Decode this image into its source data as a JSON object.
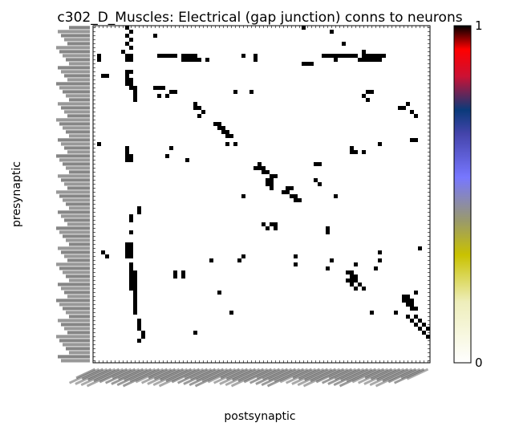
{
  "chart_data": {
    "type": "heatmap",
    "title": "c302_D_Muscles: Electrical (gap junction) conns to neurons",
    "xlabel": "postsynaptic",
    "ylabel": "presynaptic",
    "grid": false,
    "value_range": [
      0,
      1
    ],
    "colorbar": {
      "ticks": [
        0,
        1
      ],
      "tick_labels": [
        "0",
        "1"
      ],
      "stops": [
        {
          "value": 0.0,
          "color": "#ffffff"
        },
        {
          "value": 0.18,
          "color": "#eeeebb"
        },
        {
          "value": 0.32,
          "color": "#c9c200"
        },
        {
          "value": 0.42,
          "color": "#9a9a6a"
        },
        {
          "value": 0.55,
          "color": "#7777ff"
        },
        {
          "value": 0.68,
          "color": "#4444aa"
        },
        {
          "value": 0.75,
          "color": "#0a3a7a"
        },
        {
          "value": 0.85,
          "color": "#cc1133"
        },
        {
          "value": 0.93,
          "color": "#ff0000"
        },
        {
          "value": 1.0,
          "color": "#000000"
        }
      ]
    },
    "n_rows": 84,
    "n_cols": 84,
    "cell_value": 1,
    "cells": [
      [
        0,
        8
      ],
      [
        0,
        52
      ],
      [
        1,
        9
      ],
      [
        1,
        59
      ],
      [
        2,
        8
      ],
      [
        2,
        15
      ],
      [
        3,
        9
      ],
      [
        4,
        8
      ],
      [
        4,
        62
      ],
      [
        5,
        9
      ],
      [
        6,
        7
      ],
      [
        6,
        67
      ],
      [
        7,
        1
      ],
      [
        7,
        8
      ],
      [
        7,
        9
      ],
      [
        7,
        16
      ],
      [
        7,
        17
      ],
      [
        7,
        18
      ],
      [
        7,
        19
      ],
      [
        7,
        20
      ],
      [
        7,
        22
      ],
      [
        7,
        23
      ],
      [
        7,
        24
      ],
      [
        7,
        25
      ],
      [
        7,
        37
      ],
      [
        7,
        40
      ],
      [
        7,
        57
      ],
      [
        7,
        58
      ],
      [
        7,
        59
      ],
      [
        7,
        60
      ],
      [
        7,
        61
      ],
      [
        7,
        62
      ],
      [
        7,
        63
      ],
      [
        7,
        64
      ],
      [
        7,
        65
      ],
      [
        7,
        67
      ],
      [
        7,
        68
      ],
      [
        7,
        69
      ],
      [
        7,
        70
      ],
      [
        7,
        71
      ],
      [
        7,
        72
      ],
      [
        8,
        1
      ],
      [
        8,
        8
      ],
      [
        8,
        9
      ],
      [
        8,
        22
      ],
      [
        8,
        23
      ],
      [
        8,
        24
      ],
      [
        8,
        25
      ],
      [
        8,
        26
      ],
      [
        8,
        28
      ],
      [
        8,
        40
      ],
      [
        8,
        60
      ],
      [
        8,
        66
      ],
      [
        8,
        67
      ],
      [
        8,
        68
      ],
      [
        8,
        69
      ],
      [
        8,
        70
      ],
      [
        8,
        71
      ],
      [
        9,
        52
      ],
      [
        9,
        53
      ],
      [
        9,
        54
      ],
      [
        11,
        8
      ],
      [
        11,
        9
      ],
      [
        12,
        2
      ],
      [
        12,
        3
      ],
      [
        12,
        8
      ],
      [
        13,
        8
      ],
      [
        13,
        9
      ],
      [
        14,
        8
      ],
      [
        14,
        9
      ],
      [
        15,
        9
      ],
      [
        15,
        10
      ],
      [
        15,
        15
      ],
      [
        15,
        16
      ],
      [
        15,
        17
      ],
      [
        16,
        10
      ],
      [
        16,
        19
      ],
      [
        16,
        20
      ],
      [
        16,
        35
      ],
      [
        16,
        39
      ],
      [
        16,
        68
      ],
      [
        16,
        69
      ],
      [
        17,
        10
      ],
      [
        17,
        16
      ],
      [
        17,
        18
      ],
      [
        17,
        67
      ],
      [
        18,
        10
      ],
      [
        18,
        68
      ],
      [
        19,
        25
      ],
      [
        19,
        78
      ],
      [
        20,
        25
      ],
      [
        20,
        26
      ],
      [
        20,
        76
      ],
      [
        20,
        77
      ],
      [
        21,
        27
      ],
      [
        21,
        79
      ],
      [
        22,
        26
      ],
      [
        22,
        80
      ],
      [
        24,
        30
      ],
      [
        24,
        31
      ],
      [
        25,
        31
      ],
      [
        25,
        32
      ],
      [
        26,
        32
      ],
      [
        26,
        33
      ],
      [
        27,
        33
      ],
      [
        27,
        34
      ],
      [
        28,
        79
      ],
      [
        28,
        80
      ],
      [
        29,
        1
      ],
      [
        29,
        33
      ],
      [
        29,
        35
      ],
      [
        29,
        71
      ],
      [
        30,
        8
      ],
      [
        30,
        19
      ],
      [
        30,
        64
      ],
      [
        31,
        8
      ],
      [
        31,
        64
      ],
      [
        31,
        65
      ],
      [
        31,
        67
      ],
      [
        32,
        8
      ],
      [
        32,
        9
      ],
      [
        32,
        18
      ],
      [
        33,
        8
      ],
      [
        33,
        9
      ],
      [
        33,
        23
      ],
      [
        34,
        41
      ],
      [
        34,
        55
      ],
      [
        34,
        56
      ],
      [
        35,
        40
      ],
      [
        35,
        41
      ],
      [
        35,
        42
      ],
      [
        36,
        42
      ],
      [
        36,
        43
      ],
      [
        37,
        44
      ],
      [
        37,
        45
      ],
      [
        38,
        43
      ],
      [
        38,
        44
      ],
      [
        38,
        55
      ],
      [
        39,
        43
      ],
      [
        39,
        44
      ],
      [
        39,
        56
      ],
      [
        40,
        44
      ],
      [
        40,
        48
      ],
      [
        40,
        49
      ],
      [
        41,
        47
      ],
      [
        41,
        48
      ],
      [
        42,
        37
      ],
      [
        42,
        49
      ],
      [
        42,
        50
      ],
      [
        42,
        60
      ],
      [
        43,
        50
      ],
      [
        43,
        51
      ],
      [
        45,
        11
      ],
      [
        46,
        11
      ],
      [
        47,
        9
      ],
      [
        48,
        9
      ],
      [
        49,
        42
      ],
      [
        49,
        44
      ],
      [
        49,
        45
      ],
      [
        50,
        43
      ],
      [
        50,
        45
      ],
      [
        50,
        58
      ],
      [
        51,
        9
      ],
      [
        51,
        58
      ],
      [
        54,
        8
      ],
      [
        54,
        9
      ],
      [
        55,
        8
      ],
      [
        55,
        9
      ],
      [
        55,
        81
      ],
      [
        56,
        2
      ],
      [
        56,
        8
      ],
      [
        56,
        9
      ],
      [
        56,
        71
      ],
      [
        57,
        3
      ],
      [
        57,
        8
      ],
      [
        57,
        9
      ],
      [
        57,
        37
      ],
      [
        57,
        50
      ],
      [
        58,
        29
      ],
      [
        58,
        36
      ],
      [
        58,
        59
      ],
      [
        58,
        71
      ],
      [
        59,
        9
      ],
      [
        59,
        50
      ],
      [
        59,
        65
      ],
      [
        60,
        9
      ],
      [
        60,
        58
      ],
      [
        60,
        70
      ],
      [
        61,
        9
      ],
      [
        61,
        10
      ],
      [
        61,
        20
      ],
      [
        61,
        22
      ],
      [
        61,
        63
      ],
      [
        61,
        64
      ],
      [
        62,
        9
      ],
      [
        62,
        10
      ],
      [
        62,
        20
      ],
      [
        62,
        22
      ],
      [
        62,
        64
      ],
      [
        62,
        65
      ],
      [
        63,
        9
      ],
      [
        63,
        10
      ],
      [
        63,
        63
      ],
      [
        63,
        64
      ],
      [
        63,
        65
      ],
      [
        64,
        9
      ],
      [
        64,
        10
      ],
      [
        64,
        64
      ],
      [
        64,
        66
      ],
      [
        65,
        9
      ],
      [
        65,
        10
      ],
      [
        65,
        65
      ],
      [
        65,
        67
      ],
      [
        66,
        10
      ],
      [
        66,
        31
      ],
      [
        66,
        80
      ],
      [
        67,
        10
      ],
      [
        67,
        77
      ],
      [
        67,
        78
      ],
      [
        68,
        10
      ],
      [
        68,
        77
      ],
      [
        68,
        78
      ],
      [
        68,
        79
      ],
      [
        69,
        10
      ],
      [
        69,
        78
      ],
      [
        69,
        79
      ],
      [
        70,
        10
      ],
      [
        70,
        79
      ],
      [
        70,
        80
      ],
      [
        71,
        10
      ],
      [
        71,
        34
      ],
      [
        71,
        69
      ],
      [
        71,
        75
      ],
      [
        72,
        78
      ],
      [
        72,
        80
      ],
      [
        73,
        11
      ],
      [
        73,
        79
      ],
      [
        73,
        81
      ],
      [
        74,
        11
      ],
      [
        74,
        80
      ],
      [
        74,
        82
      ],
      [
        75,
        11
      ],
      [
        75,
        81
      ],
      [
        75,
        83
      ],
      [
        76,
        12
      ],
      [
        76,
        25
      ],
      [
        76,
        82
      ],
      [
        77,
        12
      ],
      [
        77,
        83
      ],
      [
        78,
        11
      ]
    ]
  }
}
